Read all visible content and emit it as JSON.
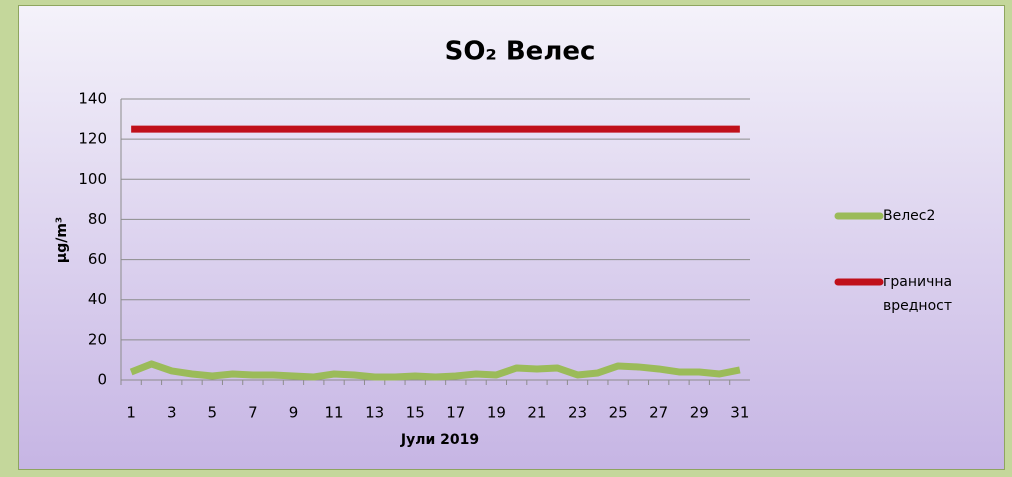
{
  "chart_data": {
    "type": "line",
    "title": "SO₂ Велес",
    "x_label": "Јули 2019",
    "y_label": "µg/m³",
    "categories": [
      "1",
      null,
      "3",
      null,
      "5",
      null,
      "7",
      null,
      "9",
      null,
      "11",
      null,
      "13",
      null,
      "15",
      null,
      "17",
      null,
      "19",
      null,
      "21",
      null,
      "23",
      null,
      "25",
      null,
      "27",
      null,
      "29",
      null,
      "31"
    ],
    "series": [
      {
        "name": "Велес2",
        "color": "#9bbb59",
        "values": [
          4,
          8,
          4.5,
          3,
          2,
          3,
          2.5,
          2.5,
          2,
          1.5,
          3,
          2.5,
          1.5,
          1.5,
          2,
          1.5,
          2,
          3,
          2.5,
          6,
          5.5,
          6,
          2.5,
          3.5,
          7,
          6.5,
          5.5,
          4,
          4,
          3,
          5
        ]
      },
      {
        "name": "гранична вредност",
        "color": "#c0101a",
        "values": [
          125,
          125,
          125,
          125,
          125,
          125,
          125,
          125,
          125,
          125,
          125,
          125,
          125,
          125,
          125,
          125,
          125,
          125,
          125,
          125,
          125,
          125,
          125,
          125,
          125,
          125,
          125,
          125,
          125,
          125,
          125
        ]
      }
    ],
    "ylim": [
      0,
      140
    ],
    "yticks": [
      0,
      20,
      40,
      60,
      80,
      100,
      120,
      140
    ],
    "grid": true,
    "legend": "right"
  }
}
